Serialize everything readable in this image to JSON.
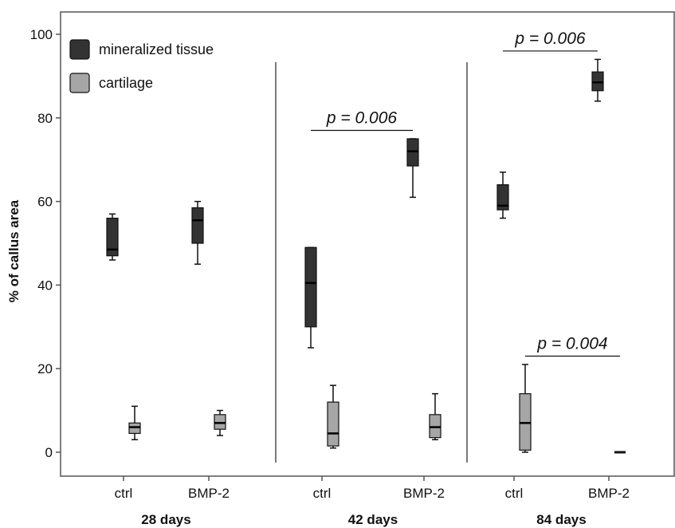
{
  "chart_data": {
    "type": "box",
    "ylabel": "% of callus area",
    "ylim": [
      0,
      100
    ],
    "yticks": [
      0,
      20,
      40,
      60,
      80,
      100
    ],
    "grid": false,
    "legend_position": "top-left",
    "series": [
      {
        "name": "mineralized tissue",
        "color": "#333333"
      },
      {
        "name": "cartilage",
        "color": "#a6a6a6"
      }
    ],
    "groups": [
      {
        "label": "28 days",
        "categories": [
          {
            "label": "ctrl",
            "mineralized": {
              "min": 46,
              "q1": 47,
              "median": 48.5,
              "q3": 56,
              "max": 57
            },
            "cartilage": {
              "min": 3,
              "q1": 4.5,
              "median": 6,
              "q3": 7,
              "max": 11
            }
          },
          {
            "label": "BMP-2",
            "mineralized": {
              "min": 45,
              "q1": 50,
              "median": 55.5,
              "q3": 58.5,
              "max": 60
            },
            "cartilage": {
              "min": 4,
              "q1": 5.5,
              "median": 7,
              "q3": 9,
              "max": 10
            }
          }
        ]
      },
      {
        "label": "42 days",
        "categories": [
          {
            "label": "ctrl",
            "mineralized": {
              "min": 25,
              "q1": 30,
              "median": 40.5,
              "q3": 49,
              "max": 49
            },
            "cartilage": {
              "min": 1,
              "q1": 1.5,
              "median": 4.5,
              "q3": 12,
              "max": 16
            }
          },
          {
            "label": "BMP-2",
            "mineralized": {
              "min": 61,
              "q1": 68.5,
              "median": 72,
              "q3": 75,
              "max": 75
            },
            "cartilage": {
              "min": 3,
              "q1": 3.5,
              "median": 6,
              "q3": 9,
              "max": 14
            }
          }
        ]
      },
      {
        "label": "84 days",
        "categories": [
          {
            "label": "ctrl",
            "mineralized": {
              "min": 56,
              "q1": 58,
              "median": 59,
              "q3": 64,
              "max": 67
            },
            "cartilage": {
              "min": 0,
              "q1": 0.5,
              "median": 7,
              "q3": 14,
              "max": 21
            }
          },
          {
            "label": "BMP-2",
            "mineralized": {
              "min": 84,
              "q1": 86.5,
              "median": 88.5,
              "q3": 91,
              "max": 94
            },
            "cartilage": {
              "min": 0,
              "q1": 0,
              "median": 0,
              "q3": 0,
              "max": 0
            }
          }
        ]
      }
    ],
    "annotations": [
      {
        "text": "p = 0.006",
        "group": 1,
        "y": 77
      },
      {
        "text": "p = 0.006",
        "group": 2,
        "y": 96
      },
      {
        "text": "p = 0.004",
        "group": 2,
        "y": 23
      }
    ]
  }
}
